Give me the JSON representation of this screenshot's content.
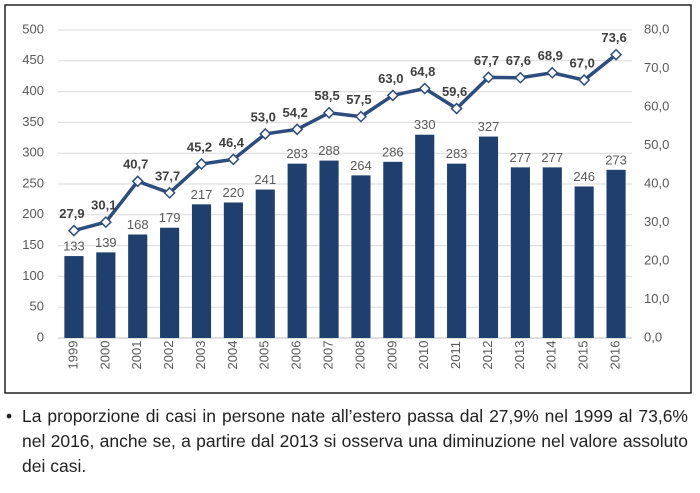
{
  "chart_data": {
    "type": "combo",
    "categories": [
      "1999",
      "2000",
      "2001",
      "2002",
      "2003",
      "2004",
      "2005",
      "2006",
      "2007",
      "2008",
      "2009",
      "2010",
      "2011",
      "2012",
      "2013",
      "2014",
      "2015",
      "2016"
    ],
    "series": [
      {
        "type": "bar",
        "color": "#1f3f6f",
        "values": [
          133,
          139,
          168,
          179,
          217,
          220,
          241,
          283,
          288,
          264,
          286,
          330,
          283,
          327,
          277,
          277,
          246,
          273
        ]
      },
      {
        "type": "line",
        "axis": "y2",
        "color": "#2e4d7f",
        "values": [
          27.9,
          30.1,
          40.7,
          37.7,
          45.2,
          46.4,
          53.0,
          54.2,
          58.5,
          57.5,
          63.0,
          64.8,
          59.6,
          67.7,
          67.6,
          68.9,
          67.0,
          73.6
        ],
        "value_labels": [
          "27,9",
          "30,1",
          "40,7",
          "37,7",
          "45,2",
          "46,4",
          "53,0",
          "54,2",
          "58,5",
          "57,5",
          "63,0",
          "64,8",
          "59,6",
          "67,7",
          "67,6",
          "68,9",
          "67,0",
          "73,6"
        ]
      }
    ],
    "ylim": [
      0,
      500
    ],
    "yticks": [
      0,
      50,
      100,
      150,
      200,
      250,
      300,
      350,
      400,
      450,
      500
    ],
    "y2lim": [
      0,
      80
    ],
    "y2ticks": [
      {
        "value": 0,
        "label": "0,0"
      },
      {
        "value": 10,
        "label": "10,0"
      },
      {
        "value": 20,
        "label": "20,0"
      },
      {
        "value": 30,
        "label": "30,0"
      },
      {
        "value": 40,
        "label": "40,0"
      },
      {
        "value": 50,
        "label": "50,0"
      },
      {
        "value": 60,
        "label": "60,0"
      },
      {
        "value": 70,
        "label": "70,0"
      },
      {
        "value": 80,
        "label": "80,0"
      }
    ],
    "grid": true
  },
  "caption": "La proporzione di casi in persone nate all’estero passa dal 27,9% nel 1999 al 73,6% nel 2016, anche se, a partire dal 2013 si osserva una diminuzione nel valore assoluto dei casi."
}
